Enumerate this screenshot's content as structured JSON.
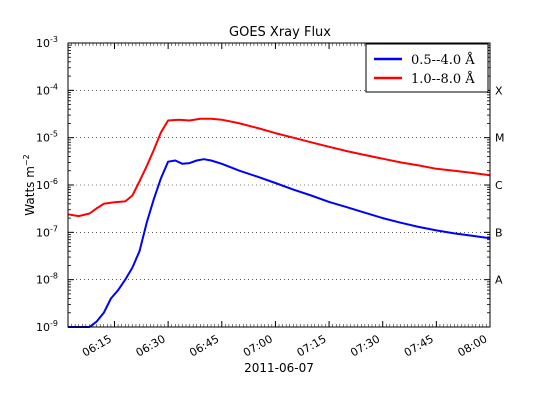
{
  "chart_data": {
    "type": "line",
    "title": "GOES Xray Flux",
    "xlabel": "2011-06-07",
    "ylabel": "Watts m",
    "ylabel_exponent": "−2",
    "yscale": "log",
    "ylim": [
      1e-09,
      0.001
    ],
    "xlim": [
      "06:02",
      "08:00"
    ],
    "x_tick_labels": [
      "06:15",
      "06:30",
      "06:45",
      "07:00",
      "07:15",
      "07:30",
      "07:45",
      "08:00"
    ],
    "y_tick_labels": [
      {
        "base": "10",
        "exp": "-3",
        "value": 0.001
      },
      {
        "base": "10",
        "exp": "-4",
        "value": 0.0001
      },
      {
        "base": "10",
        "exp": "-5",
        "value": 1e-05
      },
      {
        "base": "10",
        "exp": "-6",
        "value": 1e-06
      },
      {
        "base": "10",
        "exp": "-7",
        "value": 1e-07
      },
      {
        "base": "10",
        "exp": "-8",
        "value": 1e-08
      },
      {
        "base": "10",
        "exp": "-9",
        "value": 1e-09
      }
    ],
    "flare_classes": [
      {
        "label": "X",
        "value": 0.0001
      },
      {
        "label": "M",
        "value": 1e-05
      },
      {
        "label": "C",
        "value": 1e-06
      },
      {
        "label": "B",
        "value": 1e-07
      },
      {
        "label": "A",
        "value": 1e-08
      }
    ],
    "grid": {
      "y_major_dotted": true
    },
    "legend_position": "top-right",
    "series": [
      {
        "name": "0.5--4.0 Å",
        "color": "#0000ff",
        "x": [
          "06:02",
          "06:08",
          "06:10",
          "06:12",
          "06:14",
          "06:16",
          "06:18",
          "06:20",
          "06:22",
          "06:24",
          "06:26",
          "06:28",
          "06:30",
          "06:32",
          "06:34",
          "06:36",
          "06:38",
          "06:40",
          "06:42",
          "06:45",
          "06:50",
          "06:55",
          "07:00",
          "07:05",
          "07:10",
          "07:15",
          "07:20",
          "07:25",
          "07:30",
          "07:35",
          "07:40",
          "07:45",
          "07:50",
          "07:55",
          "08:00"
        ],
        "y": [
          1e-09,
          1e-09,
          1.3e-09,
          2e-09,
          4e-09,
          6e-09,
          1e-08,
          1.8e-08,
          4e-08,
          1.6e-07,
          5e-07,
          1.4e-06,
          3.1e-06,
          3.3e-06,
          2.8e-06,
          2.9e-06,
          3.3e-06,
          3.5e-06,
          3.3e-06,
          2.8e-06,
          2e-06,
          1.5e-06,
          1.1e-06,
          8e-07,
          6e-07,
          4.4e-07,
          3.4e-07,
          2.6e-07,
          2e-07,
          1.6e-07,
          1.3e-07,
          1.1e-07,
          9.5e-08,
          8.5e-08,
          7.5e-08
        ]
      },
      {
        "name": "1.0--8.0 Å",
        "color": "#ff0000",
        "x": [
          "06:02",
          "06:05",
          "06:08",
          "06:10",
          "06:12",
          "06:15",
          "06:18",
          "06:20",
          "06:22",
          "06:24",
          "06:26",
          "06:28",
          "06:30",
          "06:33",
          "06:36",
          "06:39",
          "06:42",
          "06:45",
          "06:50",
          "06:55",
          "07:00",
          "07:05",
          "07:10",
          "07:15",
          "07:20",
          "07:25",
          "07:30",
          "07:35",
          "07:40",
          "07:45",
          "07:50",
          "07:55",
          "08:00"
        ],
        "y": [
          2.4e-07,
          2.2e-07,
          2.5e-07,
          3.2e-07,
          4e-07,
          4.3e-07,
          4.5e-07,
          6e-07,
          1.2e-06,
          2.5e-06,
          5.5e-06,
          1.3e-05,
          2.3e-05,
          2.4e-05,
          2.3e-05,
          2.5e-05,
          2.5e-05,
          2.4e-05,
          2e-05,
          1.6e-05,
          1.25e-05,
          1e-05,
          8e-06,
          6.4e-06,
          5.2e-06,
          4.3e-06,
          3.6e-06,
          3e-06,
          2.6e-06,
          2.2e-06,
          2e-06,
          1.8e-06,
          1.6e-06
        ]
      }
    ]
  }
}
